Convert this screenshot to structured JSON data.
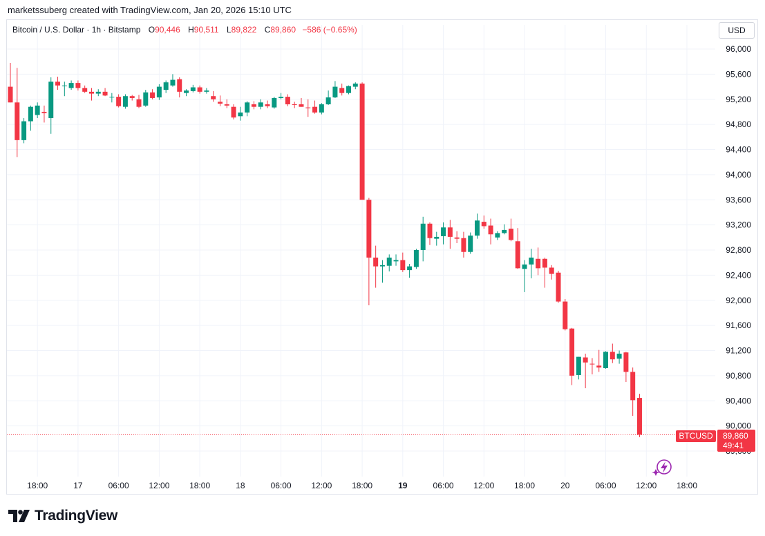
{
  "header": {
    "credit": "marketssuberg created with TradingView.com, Jan 20, 2026 15:10 UTC"
  },
  "legend": {
    "symbol": "Bitcoin / U.S. Dollar · 1h · Bitstamp",
    "open_label": "O",
    "open": "90,446",
    "high_label": "H",
    "high": "90,511",
    "low_label": "L",
    "low": "89,822",
    "close_label": "C",
    "close": "89,860",
    "change": "−586 (−0.65%)"
  },
  "currency_button": "USD",
  "price_tag": {
    "symbol": "BTCUSD",
    "price": "89,860",
    "countdown": "49:41"
  },
  "brand": {
    "name": "TradingView"
  },
  "colors": {
    "up": "#089981",
    "down": "#f23645",
    "grid": "#f0f3fa",
    "text": "#131722"
  },
  "chart_data": {
    "type": "candlestick",
    "y_ticks": [
      "96,000",
      "95,600",
      "95,200",
      "94,800",
      "94,400",
      "94,000",
      "93,600",
      "93,200",
      "92,800",
      "92,400",
      "92,000",
      "91,600",
      "91,200",
      "90,800",
      "90,400",
      "90,000",
      "89,600"
    ],
    "ylim": [
      89450,
      96200
    ],
    "x_ticks": [
      {
        "label": "18:00",
        "bar": 4
      },
      {
        "label": "17",
        "bar": 10
      },
      {
        "label": "06:00",
        "bar": 16
      },
      {
        "label": "12:00",
        "bar": 22
      },
      {
        "label": "18:00",
        "bar": 28
      },
      {
        "label": "18",
        "bar": 34
      },
      {
        "label": "06:00",
        "bar": 40
      },
      {
        "label": "12:00",
        "bar": 46
      },
      {
        "label": "18:00",
        "bar": 52
      },
      {
        "label": "19",
        "bar": 58,
        "bold": true
      },
      {
        "label": "06:00",
        "bar": 64
      },
      {
        "label": "12:00",
        "bar": 70
      },
      {
        "label": "18:00",
        "bar": 76
      },
      {
        "label": "20",
        "bar": 82
      },
      {
        "label": "06:00",
        "bar": 88
      },
      {
        "label": "12:00",
        "bar": 94
      },
      {
        "label": "18:00",
        "bar": 100
      }
    ],
    "last_price": 89860,
    "ohlc": [
      [
        95400,
        95780,
        95150,
        95150
      ],
      [
        95150,
        95700,
        94280,
        94550
      ],
      [
        94550,
        94900,
        94500,
        94850
      ],
      [
        94850,
        95100,
        94700,
        95080
      ],
      [
        94950,
        95150,
        94900,
        95100
      ],
      [
        95000,
        95100,
        94830,
        94980
      ],
      [
        94900,
        95550,
        94650,
        95480
      ],
      [
        95480,
        95560,
        95350,
        95420
      ],
      [
        95420,
        95480,
        95250,
        95420
      ],
      [
        95380,
        95500,
        95350,
        95460
      ],
      [
        95460,
        95500,
        95340,
        95380
      ],
      [
        95380,
        95420,
        95300,
        95320
      ],
      [
        95320,
        95380,
        95180,
        95290
      ],
      [
        95290,
        95360,
        95250,
        95320
      ],
      [
        95320,
        95380,
        95250,
        95260
      ],
      [
        95240,
        95300,
        95150,
        95240
      ],
      [
        95240,
        95280,
        95070,
        95090
      ],
      [
        95080,
        95280,
        95050,
        95250
      ],
      [
        95250,
        95270,
        95180,
        95220
      ],
      [
        95200,
        95270,
        95060,
        95080
      ],
      [
        95100,
        95350,
        95080,
        95310
      ],
      [
        95310,
        95360,
        95200,
        95220
      ],
      [
        95230,
        95440,
        95190,
        95400
      ],
      [
        95350,
        95500,
        95300,
        95470
      ],
      [
        95420,
        95600,
        95400,
        95510
      ],
      [
        95520,
        95550,
        95230,
        95320
      ],
      [
        95300,
        95360,
        95250,
        95340
      ],
      [
        95330,
        95430,
        95310,
        95390
      ],
      [
        95390,
        95420,
        95290,
        95320
      ],
      [
        95320,
        95380,
        95290,
        95340
      ],
      [
        95250,
        95330,
        95160,
        95200
      ],
      [
        95160,
        95260,
        95090,
        95130
      ],
      [
        95120,
        95200,
        95060,
        95100
      ],
      [
        95080,
        95120,
        94880,
        94910
      ],
      [
        94930,
        95080,
        94860,
        94990
      ],
      [
        94990,
        95170,
        94930,
        95150
      ],
      [
        95120,
        95170,
        95040,
        95080
      ],
      [
        95080,
        95200,
        95040,
        95150
      ],
      [
        95120,
        95180,
        95060,
        95090
      ],
      [
        95070,
        95240,
        95050,
        95220
      ],
      [
        95220,
        95300,
        95200,
        95240
      ],
      [
        95240,
        95280,
        95090,
        95120
      ],
      [
        95120,
        95160,
        95060,
        95110
      ],
      [
        95120,
        95220,
        95080,
        95080
      ],
      [
        95070,
        95200,
        94920,
        95060
      ],
      [
        95080,
        95180,
        94970,
        94990
      ],
      [
        94990,
        95140,
        94960,
        95120
      ],
      [
        95120,
        95340,
        95110,
        95230
      ],
      [
        95230,
        95490,
        95220,
        95400
      ],
      [
        95380,
        95450,
        95260,
        95300
      ],
      [
        95300,
        95420,
        95280,
        95410
      ],
      [
        95400,
        95470,
        95360,
        95450
      ],
      [
        95450,
        95470,
        93640,
        93600
      ],
      [
        93600,
        93630,
        91920,
        92680
      ],
      [
        92680,
        92870,
        92200,
        92540
      ],
      [
        92540,
        92640,
        92280,
        92560
      ],
      [
        92550,
        92730,
        92460,
        92680
      ],
      [
        92620,
        92730,
        92550,
        92640
      ],
      [
        92640,
        92760,
        92450,
        92480
      ],
      [
        92480,
        92580,
        92360,
        92540
      ],
      [
        92530,
        92820,
        92500,
        92800
      ],
      [
        92800,
        93330,
        92620,
        93220
      ],
      [
        93220,
        93240,
        92880,
        92990
      ],
      [
        92980,
        93090,
        92870,
        93010
      ],
      [
        93020,
        93240,
        92890,
        93160
      ],
      [
        93160,
        93280,
        92820,
        93010
      ],
      [
        93000,
        93100,
        92910,
        92980
      ],
      [
        92990,
        93090,
        92680,
        92770
      ],
      [
        92770,
        93080,
        92740,
        93030
      ],
      [
        93030,
        93380,
        92980,
        93270
      ],
      [
        93250,
        93350,
        93140,
        93180
      ],
      [
        93190,
        93300,
        92890,
        93050
      ],
      [
        93000,
        93100,
        92960,
        93070
      ],
      [
        93070,
        93210,
        93050,
        93120
      ],
      [
        93140,
        93300,
        92940,
        92960
      ],
      [
        92940,
        93150,
        92500,
        92510
      ],
      [
        92500,
        92640,
        92130,
        92570
      ],
      [
        92570,
        92820,
        92350,
        92680
      ],
      [
        92660,
        92840,
        92400,
        92510
      ],
      [
        92660,
        92680,
        92200,
        92520
      ],
      [
        92520,
        92560,
        92330,
        92420
      ],
      [
        92440,
        92470,
        91960,
        91980
      ],
      [
        91980,
        92020,
        91520,
        91540
      ],
      [
        91550,
        91560,
        90650,
        90800
      ],
      [
        90810,
        91100,
        90740,
        91100
      ],
      [
        91090,
        91150,
        90600,
        91010
      ],
      [
        90990,
        91080,
        90820,
        90980
      ],
      [
        90960,
        91210,
        90860,
        90930
      ],
      [
        90920,
        91190,
        90910,
        91180
      ],
      [
        91180,
        91310,
        91000,
        91060
      ],
      [
        91070,
        91200,
        90990,
        91150
      ],
      [
        91170,
        91180,
        90700,
        90860
      ],
      [
        90860,
        90930,
        90160,
        90410
      ],
      [
        90446,
        90511,
        89822,
        89860
      ]
    ]
  }
}
